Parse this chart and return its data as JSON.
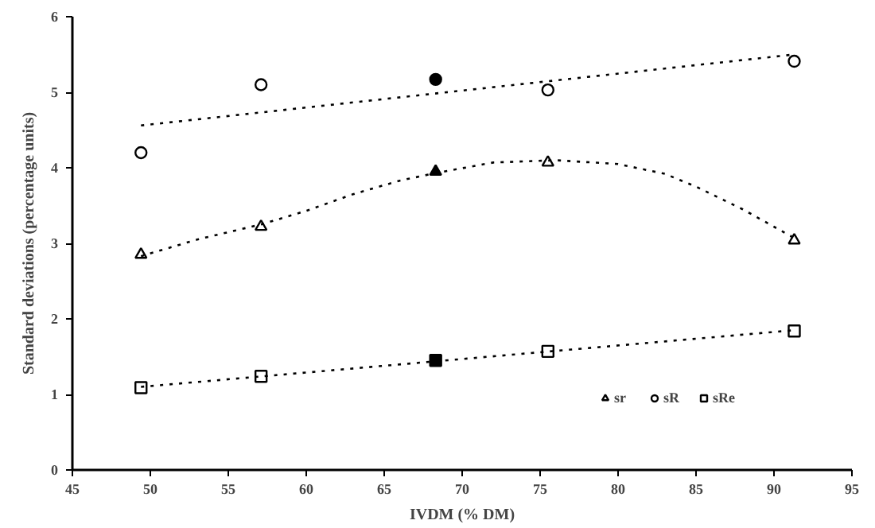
{
  "chart_data": {
    "type": "scatter",
    "xlabel": "IVDM (% DM)",
    "ylabel": "Standard deviations (percentage units)",
    "xlim": [
      45,
      95
    ],
    "xticks": [
      45,
      50,
      55,
      60,
      65,
      70,
      75,
      80,
      85,
      90,
      95
    ],
    "ylim": [
      0,
      6
    ],
    "yticks": [
      0,
      1,
      2,
      3,
      4,
      5,
      6
    ],
    "grid": false,
    "legend": "bottom right",
    "series": [
      {
        "name": "sr",
        "marker": "triangle",
        "color": "#000000",
        "colors": [
          "#ffffff",
          "#ffffff",
          "#000000",
          "#ffffff",
          "#ffffff"
        ],
        "x": [
          49.4,
          57.1,
          68.3,
          75.5,
          91.3
        ],
        "values": [
          2.85,
          3.22,
          3.95,
          4.07,
          3.04
        ]
      },
      {
        "name": "sR",
        "marker": "circle",
        "color": "#000000",
        "colors": [
          "#ffffff",
          "#ffffff",
          "#000000",
          "#ffffff",
          "#ffffff"
        ],
        "x": [
          49.4,
          57.1,
          68.3,
          75.5,
          91.3
        ],
        "values": [
          4.2,
          5.1,
          5.17,
          5.03,
          5.41
        ]
      },
      {
        "name": "sRe",
        "marker": "square",
        "color": "#000000",
        "colors": [
          "#ffffff",
          "#ffffff",
          "#000000",
          "#ffffff",
          "#ffffff"
        ],
        "x": [
          49.4,
          57.1,
          68.3,
          75.5,
          91.3
        ],
        "values": [
          1.09,
          1.24,
          1.45,
          1.57,
          1.84
        ]
      },
      {
        "type": "line",
        "line_style": "dotted",
        "color": "#000000",
        "x": [
          49.4,
          53,
          57.1,
          60,
          63,
          66,
          68.3,
          72,
          76,
          80,
          83,
          85,
          88,
          91.3
        ],
        "values": [
          2.83,
          3.05,
          3.25,
          3.43,
          3.65,
          3.83,
          3.93,
          4.07,
          4.1,
          4.05,
          3.92,
          3.75,
          3.45,
          3.07
        ]
      },
      {
        "type": "line",
        "line_style": "dotted",
        "color": "#000000",
        "x": [
          49.4,
          91.3
        ],
        "values": [
          4.56,
          5.5
        ]
      },
      {
        "type": "line",
        "line_style": "dotted",
        "color": "#000000",
        "x": [
          49.4,
          91.3
        ],
        "values": [
          1.1,
          1.85
        ]
      }
    ]
  }
}
